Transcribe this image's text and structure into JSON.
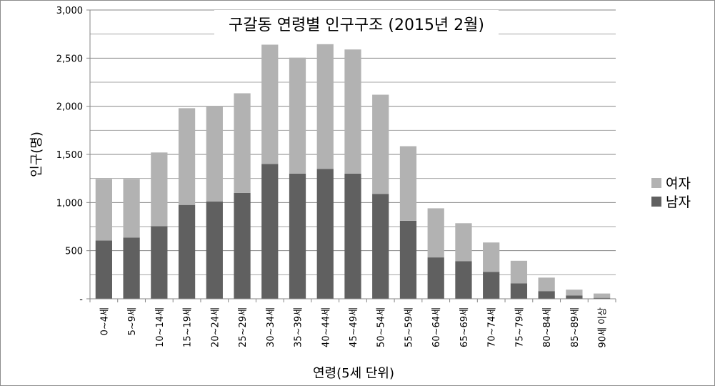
{
  "chart_data": {
    "type": "bar",
    "stacked": true,
    "title": "구갈동 연령별 인구구조 (2015년 2월)",
    "xlabel": "연령(5세 단위)",
    "ylabel": "인구(명)",
    "ylim": [
      0,
      3000
    ],
    "yticks": [
      0,
      500,
      1000,
      1500,
      2000,
      2500,
      3000
    ],
    "ytick_labels": [
      "-",
      "500",
      "1,000",
      "1,500",
      "2,000",
      "2,500",
      "3,000"
    ],
    "grid": true,
    "legend_position": "right",
    "categories": [
      "0~4세",
      "5~9세",
      "10~14세",
      "15~19세",
      "20~24세",
      "25~29세",
      "30~34세",
      "35~39세",
      "40~44세",
      "45~49세",
      "50~54세",
      "55~59세",
      "60~64세",
      "65~69세",
      "70~74세",
      "75~79세",
      "80~84세",
      "85~89세",
      "90세 이상"
    ],
    "series": [
      {
        "name": "남자",
        "color": "#606060",
        "values": [
          605,
          635,
          755,
          975,
          1010,
          1100,
          1400,
          1300,
          1350,
          1300,
          1090,
          810,
          430,
          390,
          280,
          160,
          80,
          35,
          10
        ]
      },
      {
        "name": "여자",
        "color": "#b2b2b2",
        "values": [
          640,
          610,
          765,
          1005,
          995,
          1035,
          1240,
          1205,
          1295,
          1290,
          1030,
          775,
          510,
          395,
          305,
          235,
          140,
          60,
          45
        ]
      }
    ]
  }
}
